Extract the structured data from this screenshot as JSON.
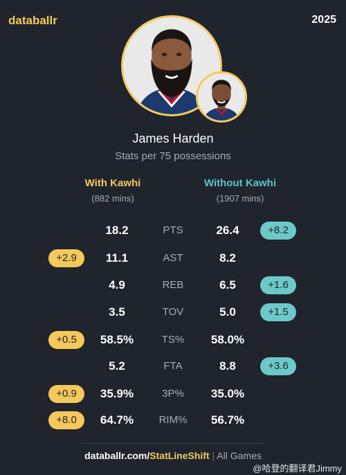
{
  "brand": "databallr",
  "year": "2025",
  "player": {
    "name": "James Harden",
    "subtitle": "Stats per 75 possessions"
  },
  "columns": {
    "with": {
      "title": "With Kawhi",
      "minutes": "(882 mins)"
    },
    "without": {
      "title": "Without Kawhi",
      "minutes": "(1907 mins)"
    }
  },
  "rows": [
    {
      "stat": "PTS",
      "with": "18.2",
      "without": "26.4",
      "with_diff": "",
      "without_diff": "+8.2"
    },
    {
      "stat": "AST",
      "with": "11.1",
      "without": "8.2",
      "with_diff": "+2.9",
      "without_diff": ""
    },
    {
      "stat": "REB",
      "with": "4.9",
      "without": "6.5",
      "with_diff": "",
      "without_diff": "+1.6"
    },
    {
      "stat": "TOV",
      "with": "3.5",
      "without": "5.0",
      "with_diff": "",
      "without_diff": "+1.5"
    },
    {
      "stat": "TS%",
      "with": "58.5%",
      "without": "58.0%",
      "with_diff": "+0.5",
      "without_diff": ""
    },
    {
      "stat": "FTA",
      "with": "5.2",
      "without": "8.8",
      "with_diff": "",
      "without_diff": "+3.6"
    },
    {
      "stat": "3P%",
      "with": "35.9%",
      "without": "35.0%",
      "with_diff": "+0.9",
      "without_diff": ""
    },
    {
      "stat": "RIM%",
      "with": "64.7%",
      "without": "56.7%",
      "with_diff": "+8.0",
      "without_diff": ""
    }
  ],
  "footer": {
    "site": "databallr.com/",
    "path": "StatLineShift",
    "separator": "|",
    "games": "All Games"
  },
  "watermark": "@哈登的翻译君Jimmy",
  "colors": {
    "background": "#1f242d",
    "accent_with": "#f3c95a",
    "accent_without": "#5ec4c4"
  }
}
